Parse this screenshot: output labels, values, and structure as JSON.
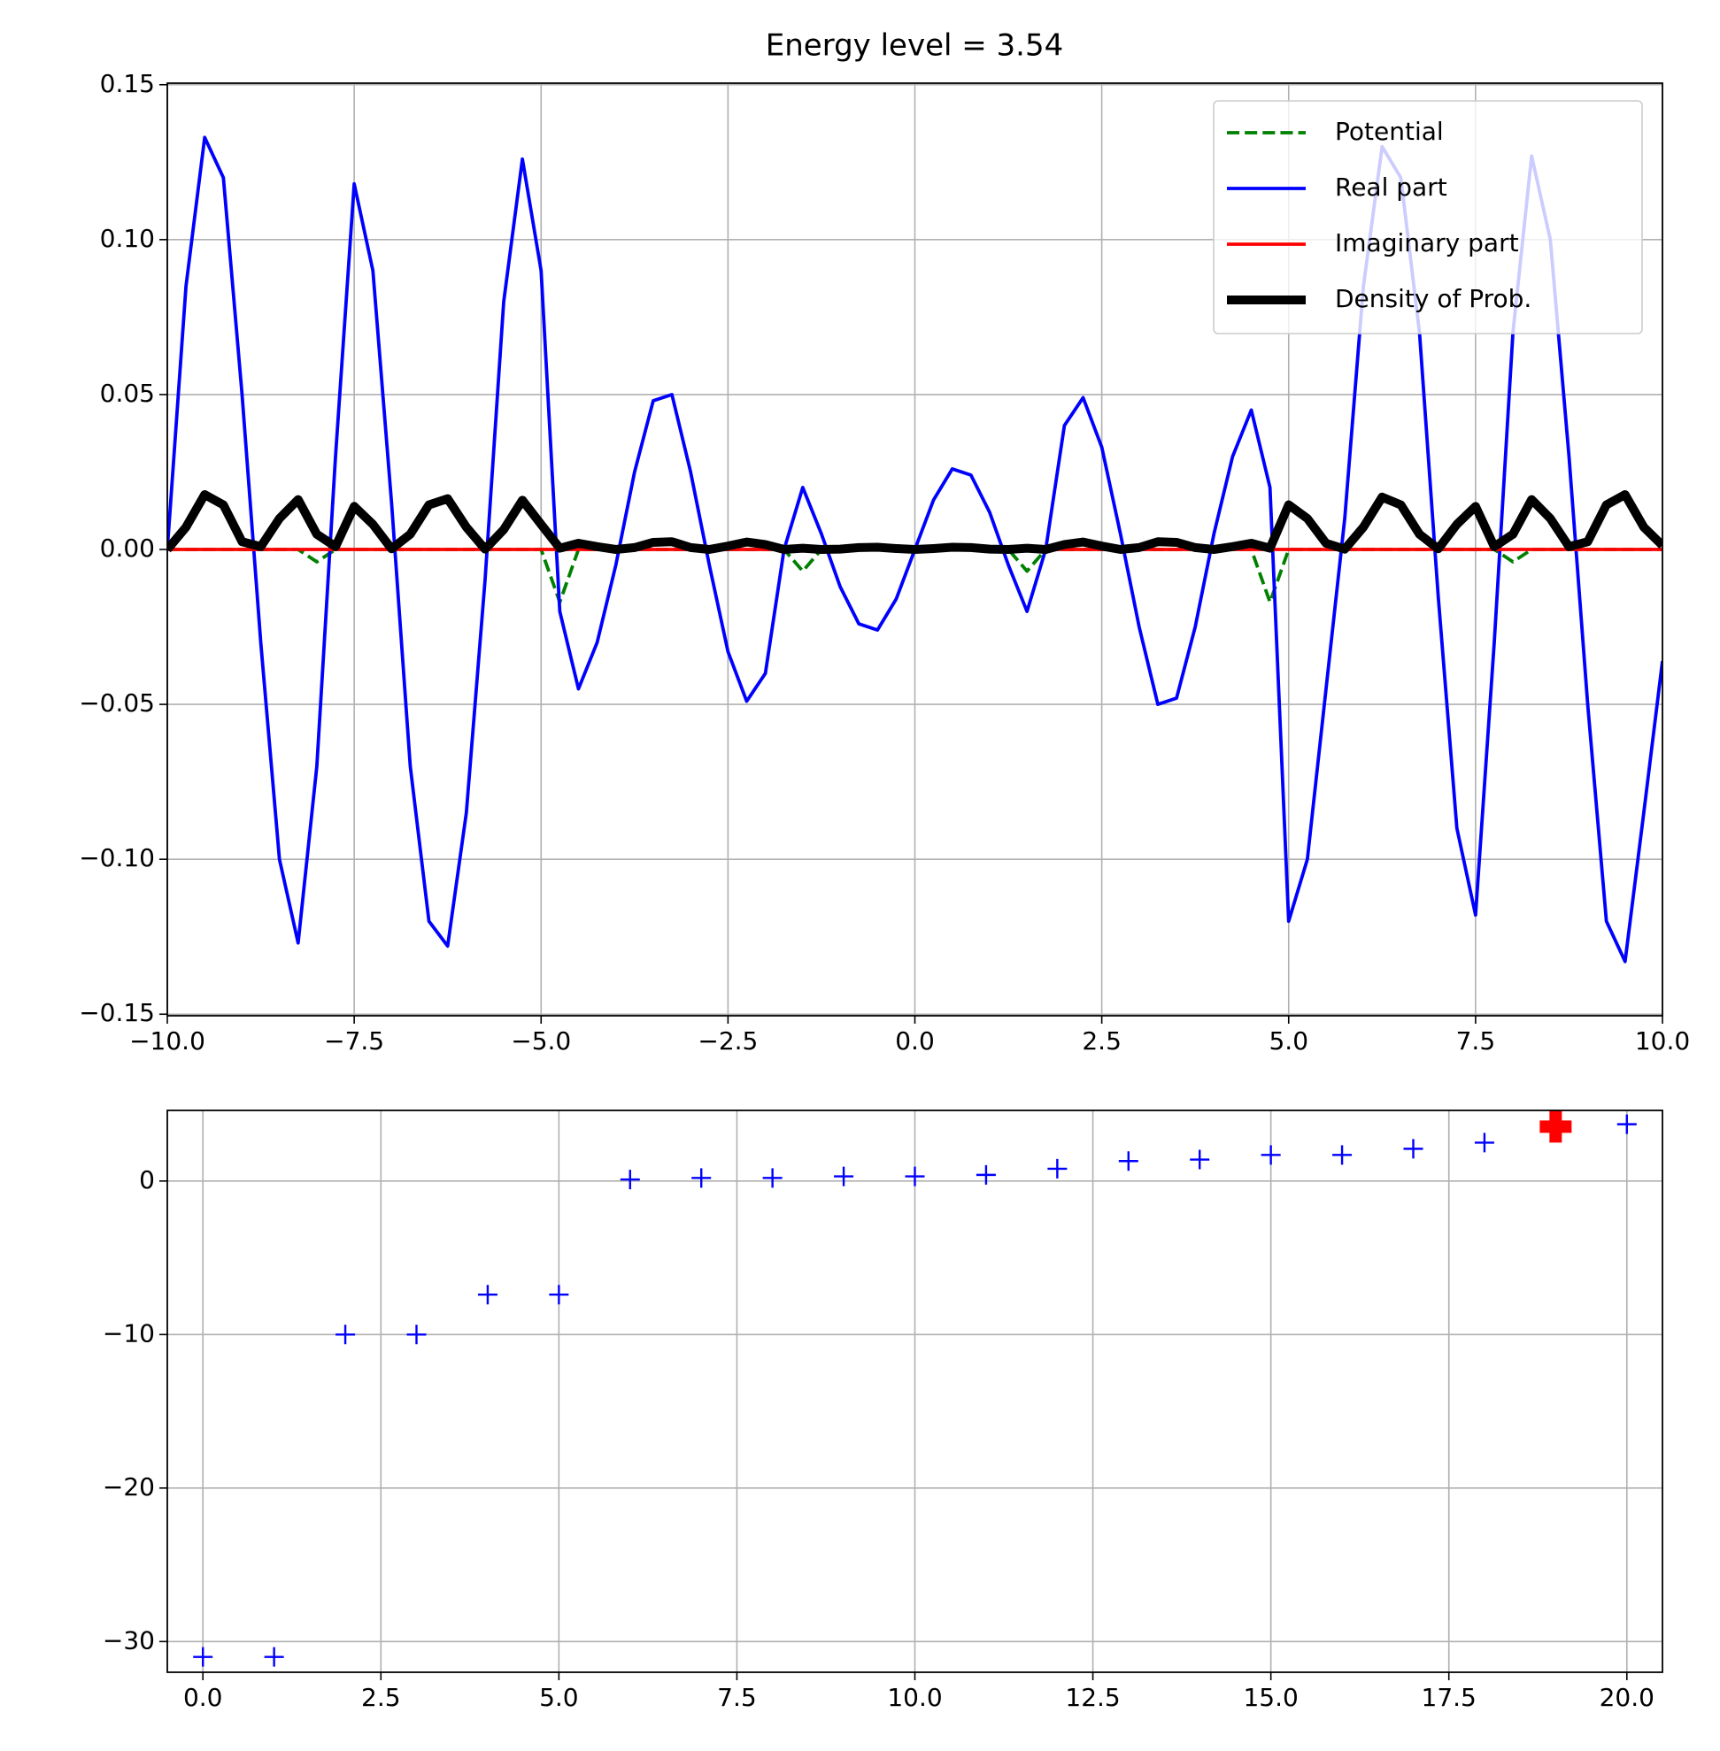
{
  "chart_data": [
    {
      "type": "line",
      "title": "Energy level = 3.54",
      "x": [
        -10,
        -9.75,
        -9.5,
        -9.25,
        -9,
        -8.75,
        -8.5,
        -8.25,
        -8,
        -7.75,
        -7.5,
        -7.25,
        -7,
        -6.75,
        -6.5,
        -6.25,
        -6,
        -5.75,
        -5.5,
        -5.25,
        -5,
        -4.75,
        -4.5,
        -4.25,
        -4,
        -3.75,
        -3.5,
        -3.25,
        -3,
        -2.75,
        -2.5,
        -2.25,
        -2,
        -1.75,
        -1.5,
        -1.25,
        -1,
        -0.75,
        -0.5,
        -0.25,
        0,
        0.25,
        0.5,
        0.75,
        1,
        1.25,
        1.5,
        1.75,
        2,
        2.25,
        2.5,
        2.75,
        3,
        3.25,
        3.5,
        3.75,
        4,
        4.25,
        4.5,
        4.75,
        5,
        5.25,
        5.5,
        5.75,
        6,
        6.25,
        6.5,
        6.75,
        7,
        7.25,
        7.5,
        7.75,
        8,
        8.25,
        8.5,
        8.75,
        9,
        9.25,
        9.5,
        9.75,
        10
      ],
      "series": [
        {
          "name": "Potential",
          "color": "green",
          "linestyle": "dashed",
          "linewidth": 3.8,
          "values": [
            0,
            0,
            0,
            0,
            0,
            0,
            0,
            0,
            -0.004,
            0,
            0,
            0,
            0,
            0,
            0,
            0,
            0,
            0,
            0,
            0,
            0,
            -0.017,
            0,
            0,
            0,
            0,
            0,
            0,
            0,
            0,
            0,
            0,
            0,
            0,
            -0.007,
            0,
            0,
            0,
            0,
            0,
            0,
            0,
            0,
            0,
            0,
            0,
            -0.007,
            0,
            0,
            0,
            0,
            0,
            0,
            0,
            0,
            0,
            0,
            0,
            0,
            -0.017,
            0,
            0,
            0,
            0,
            0,
            0,
            0,
            0,
            0,
            0,
            0,
            0,
            -0.004,
            0,
            0,
            0,
            0,
            0,
            0,
            0,
            0
          ]
        },
        {
          "name": "Real part",
          "color": "blue",
          "linestyle": "solid",
          "linewidth": 3.8,
          "values": [
            0,
            0.085,
            0.133,
            0.12,
            0.05,
            -0.03,
            -0.1,
            -0.127,
            -0.07,
            0.03,
            0.118,
            0.09,
            0.015,
            -0.07,
            -0.12,
            -0.128,
            -0.085,
            -0.01,
            0.08,
            0.126,
            0.09,
            -0.02,
            -0.045,
            -0.03,
            -0.005,
            0.025,
            0.048,
            0.05,
            0.025,
            -0.005,
            -0.033,
            -0.049,
            -0.04,
            0,
            0.02,
            0.005,
            -0.012,
            -0.024,
            -0.026,
            -0.016,
            0,
            0.016,
            0.026,
            0.024,
            0.012,
            -0.005,
            -0.02,
            0,
            0.04,
            0.049,
            0.033,
            0.005,
            -0.025,
            -0.05,
            -0.048,
            -0.025,
            0.005,
            0.03,
            0.045,
            0.02,
            -0.12,
            -0.1,
            -0.045,
            0.01,
            0.085,
            0.13,
            0.12,
            0.07,
            -0.015,
            -0.09,
            -0.118,
            -0.03,
            0.07,
            0.127,
            0.1,
            0.03,
            -0.05,
            -0.12,
            -0.133,
            -0.085,
            -0.036
          ]
        },
        {
          "name": "Imaginary part",
          "color": "red",
          "linestyle": "solid",
          "linewidth": 3.8,
          "values": [
            0,
            0,
            0,
            0,
            0,
            0,
            0,
            0,
            0,
            0,
            0,
            0,
            0,
            0,
            0,
            0,
            0,
            0,
            0,
            0,
            0,
            0,
            0,
            0,
            0,
            0,
            0,
            0,
            0,
            0,
            0,
            0,
            0,
            0,
            0,
            0,
            0,
            0,
            0,
            0,
            0,
            0,
            0,
            0,
            0,
            0,
            0,
            0,
            0,
            0,
            0,
            0,
            0,
            0,
            0,
            0,
            0,
            0,
            0,
            0,
            0,
            0,
            0,
            0,
            0,
            0,
            0,
            0,
            0,
            0,
            0,
            0,
            0,
            0,
            0,
            0,
            0,
            0,
            0,
            0,
            0
          ]
        },
        {
          "name": "Density of Prob.",
          "color": "black",
          "linestyle": "solid",
          "linewidth": 10,
          "values": [
            0,
            0.0072,
            0.0177,
            0.0144,
            0.0025,
            0.0009,
            0.01,
            0.0161,
            0.0049,
            0.0009,
            0.0139,
            0.0081,
            0.0002,
            0.0049,
            0.0144,
            0.0164,
            0.0072,
            0.0001,
            0.0064,
            0.0159,
            0.0081,
            0.0004,
            0.002,
            0.0009,
            0,
            0.0006,
            0.0023,
            0.0025,
            0.0006,
            0,
            0.0011,
            0.0024,
            0.0016,
            0,
            0.0004,
            0,
            0.0001,
            0.0006,
            0.0007,
            0.0003,
            0,
            0.0003,
            0.0007,
            0.0006,
            0.0001,
            0,
            0.0004,
            0,
            0.0016,
            0.0024,
            0.0011,
            0,
            0.0006,
            0.0025,
            0.0023,
            0.0006,
            0,
            0.0009,
            0.002,
            0.0004,
            0.0144,
            0.01,
            0.002,
            0.0001,
            0.0072,
            0.0169,
            0.0144,
            0.0049,
            0.0002,
            0.0081,
            0.0139,
            0.0009,
            0.0049,
            0.0161,
            0.01,
            0.0009,
            0.0025,
            0.0144,
            0.0177,
            0.0072,
            0.0013
          ]
        }
      ],
      "xlim": [
        -10,
        10
      ],
      "ylim": [
        -0.1505,
        0.1505
      ],
      "xticks": [
        {
          "value": -10,
          "label": "−10.0"
        },
        {
          "value": -7.5,
          "label": "−7.5"
        },
        {
          "value": -5,
          "label": "−5.0"
        },
        {
          "value": -2.5,
          "label": "−2.5"
        },
        {
          "value": 0,
          "label": "0.0"
        },
        {
          "value": 2.5,
          "label": "2.5"
        },
        {
          "value": 5,
          "label": "5.0"
        },
        {
          "value": 7.5,
          "label": "7.5"
        },
        {
          "value": 10,
          "label": "10.0"
        }
      ],
      "yticks": [
        {
          "value": -0.15,
          "label": "−0.15"
        },
        {
          "value": -0.1,
          "label": "−0.10"
        },
        {
          "value": -0.05,
          "label": "−0.05"
        },
        {
          "value": 0,
          "label": "0.00"
        },
        {
          "value": 0.05,
          "label": "0.05"
        },
        {
          "value": 0.1,
          "label": "0.10"
        },
        {
          "value": 0.15,
          "label": "0.15"
        }
      ],
      "grid": true,
      "legend": "upper right"
    },
    {
      "type": "scatter",
      "series": [
        {
          "color": "blue",
          "marker": "+",
          "x": [
            0,
            1,
            2,
            3,
            4,
            5,
            6,
            7,
            8,
            9,
            10,
            11,
            12,
            13,
            14,
            15,
            16,
            17,
            18,
            19,
            20
          ],
          "values": [
            -31,
            -31,
            -10,
            -10,
            -7.4,
            -7.4,
            0.1,
            0.2,
            0.2,
            0.3,
            0.3,
            0.4,
            0.8,
            1.3,
            1.4,
            1.7,
            1.7,
            2.1,
            2.5,
            3.54,
            3.7
          ]
        },
        {
          "color": "red",
          "marker": "P",
          "x": [
            19
          ],
          "values": [
            3.54
          ]
        }
      ],
      "xlim": [
        -0.5,
        20.5
      ],
      "ylim": [
        -32,
        4.6
      ],
      "xticks": [
        {
          "value": 0,
          "label": "0.0"
        },
        {
          "value": 2.5,
          "label": "2.5"
        },
        {
          "value": 5,
          "label": "5.0"
        },
        {
          "value": 7.5,
          "label": "7.5"
        },
        {
          "value": 10,
          "label": "10.0"
        },
        {
          "value": 12.5,
          "label": "12.5"
        },
        {
          "value": 15,
          "label": "15.0"
        },
        {
          "value": 17.5,
          "label": "17.5"
        },
        {
          "value": 20,
          "label": "20.0"
        }
      ],
      "yticks": [
        {
          "value": -30,
          "label": "−30"
        },
        {
          "value": -20,
          "label": "−20"
        },
        {
          "value": -10,
          "label": "−10"
        },
        0
      ],
      "grid": true
    }
  ]
}
